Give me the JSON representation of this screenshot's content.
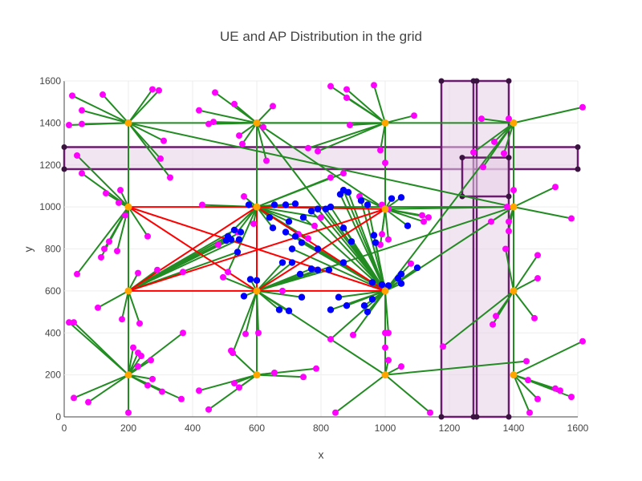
{
  "chart_data": {
    "type": "scatter",
    "title": "UE and AP Distribution in the grid",
    "xlabel": "x",
    "ylabel": "y",
    "xlim": [
      0,
      1600
    ],
    "ylim": [
      0,
      1600
    ],
    "x_ticks": [
      "0",
      "200",
      "400",
      "600",
      "800",
      "1000",
      "1200",
      "1400",
      "1600"
    ],
    "y_ticks": [
      "0",
      "200",
      "400",
      "600",
      "800",
      "1000",
      "1200",
      "1400",
      "1600"
    ],
    "grid": true,
    "legend": "none",
    "colors": {
      "ap": "#ffa500",
      "ue_far": "#ff00ff",
      "ue_near": "#0000ff",
      "link_green": "#228b22",
      "link_red": "#ff0000",
      "zone_fill": "#e8d0e8",
      "zone_stroke": "#6a1b6e"
    },
    "zones": [
      {
        "x0": 0,
        "x1": 1600,
        "y0": 1180,
        "y1": 1285
      },
      {
        "x0": 1175,
        "x1": 1275,
        "y0": 0,
        "y1": 1600
      },
      {
        "x0": 1285,
        "x1": 1385,
        "y0": 0,
        "y1": 1600
      },
      {
        "x0": 1240,
        "x1": 1385,
        "y0": 1050,
        "y1": 1235
      }
    ],
    "access_points": [
      {
        "x": 200,
        "y": 1400
      },
      {
        "x": 600,
        "y": 1400
      },
      {
        "x": 1000,
        "y": 1400
      },
      {
        "x": 1400,
        "y": 1400
      },
      {
        "x": 200,
        "y": 1000
      },
      {
        "x": 600,
        "y": 1000
      },
      {
        "x": 1000,
        "y": 990
      },
      {
        "x": 1400,
        "y": 1000
      },
      {
        "x": 200,
        "y": 600
      },
      {
        "x": 600,
        "y": 600
      },
      {
        "x": 1000,
        "y": 600
      },
      {
        "x": 1400,
        "y": 600
      },
      {
        "x": 200,
        "y": 200
      },
      {
        "x": 600,
        "y": 200
      },
      {
        "x": 1000,
        "y": 200
      },
      {
        "x": 1400,
        "y": 200
      }
    ],
    "ue_far": [
      {
        "x": 25,
        "y": 1530,
        "ap": 0
      },
      {
        "x": 55,
        "y": 1460,
        "ap": 0
      },
      {
        "x": 120,
        "y": 1535,
        "ap": 0
      },
      {
        "x": 15,
        "y": 1390,
        "ap": 0
      },
      {
        "x": 55,
        "y": 1395,
        "ap": 0
      },
      {
        "x": 275,
        "y": 1560,
        "ap": 0
      },
      {
        "x": 295,
        "y": 1555,
        "ap": 0
      },
      {
        "x": 310,
        "y": 1315,
        "ap": 0
      },
      {
        "x": 300,
        "y": 1230,
        "ap": 0
      },
      {
        "x": 330,
        "y": 1140,
        "ap": 0
      },
      {
        "x": 470,
        "y": 1545,
        "ap": 1
      },
      {
        "x": 420,
        "y": 1460,
        "ap": 1
      },
      {
        "x": 530,
        "y": 1490,
        "ap": 1
      },
      {
        "x": 450,
        "y": 1395,
        "ap": 1
      },
      {
        "x": 465,
        "y": 1405,
        "ap": 1
      },
      {
        "x": 545,
        "y": 1340,
        "ap": 1
      },
      {
        "x": 555,
        "y": 1300,
        "ap": 1
      },
      {
        "x": 620,
        "y": 1380,
        "ap": 1
      },
      {
        "x": 650,
        "y": 1480,
        "ap": 1
      },
      {
        "x": 630,
        "y": 1220,
        "ap": 1
      },
      {
        "x": 830,
        "y": 1575,
        "ap": 2
      },
      {
        "x": 880,
        "y": 1560,
        "ap": 2
      },
      {
        "x": 880,
        "y": 1520,
        "ap": 2
      },
      {
        "x": 965,
        "y": 1580,
        "ap": 2
      },
      {
        "x": 1090,
        "y": 1435,
        "ap": 2
      },
      {
        "x": 890,
        "y": 1390,
        "ap": 2
      },
      {
        "x": 760,
        "y": 1280,
        "ap": 2
      },
      {
        "x": 790,
        "y": 1265,
        "ap": 2
      },
      {
        "x": 985,
        "y": 1270,
        "ap": 2
      },
      {
        "x": 1000,
        "y": 1210,
        "ap": 2
      },
      {
        "x": 1615,
        "y": 1475,
        "ap": 3
      },
      {
        "x": 1385,
        "y": 1420,
        "ap": 3
      },
      {
        "x": 1300,
        "y": 1420,
        "ap": 3
      },
      {
        "x": 1340,
        "y": 1310,
        "ap": 3
      },
      {
        "x": 1370,
        "y": 1255,
        "ap": 3
      },
      {
        "x": 1275,
        "y": 1260,
        "ap": 3
      },
      {
        "x": 1305,
        "y": 1190,
        "ap": 3
      },
      {
        "x": 40,
        "y": 1245,
        "ap": 4
      },
      {
        "x": 55,
        "y": 1160,
        "ap": 4
      },
      {
        "x": 130,
        "y": 1065,
        "ap": 4
      },
      {
        "x": 175,
        "y": 1080,
        "ap": 4
      },
      {
        "x": 170,
        "y": 1020,
        "ap": 4
      },
      {
        "x": 190,
        "y": 960,
        "ap": 4
      },
      {
        "x": 260,
        "y": 860,
        "ap": 4
      },
      {
        "x": 140,
        "y": 835,
        "ap": 4
      },
      {
        "x": 115,
        "y": 760,
        "ap": 4
      },
      {
        "x": 125,
        "y": 800,
        "ap": 4
      },
      {
        "x": 165,
        "y": 790,
        "ap": 4
      },
      {
        "x": 40,
        "y": 680,
        "ap": 4
      },
      {
        "x": 430,
        "y": 1010,
        "ap": 5
      },
      {
        "x": 560,
        "y": 1050,
        "ap": 5
      },
      {
        "x": 590,
        "y": 920,
        "ap": 5
      },
      {
        "x": 540,
        "y": 880,
        "ap": 5
      },
      {
        "x": 480,
        "y": 820,
        "ap": 5
      },
      {
        "x": 510,
        "y": 690,
        "ap": 5
      },
      {
        "x": 730,
        "y": 870,
        "ap": 5
      },
      {
        "x": 760,
        "y": 850,
        "ap": 5
      },
      {
        "x": 780,
        "y": 910,
        "ap": 5
      },
      {
        "x": 800,
        "y": 950,
        "ap": 5
      },
      {
        "x": 830,
        "y": 1140,
        "ap": 5
      },
      {
        "x": 870,
        "y": 1160,
        "ap": 5
      },
      {
        "x": 920,
        "y": 1050,
        "ap": 6
      },
      {
        "x": 990,
        "y": 1010,
        "ap": 6
      },
      {
        "x": 1010,
        "y": 990,
        "ap": 6
      },
      {
        "x": 1115,
        "y": 960,
        "ap": 6
      },
      {
        "x": 1135,
        "y": 950,
        "ap": 6
      },
      {
        "x": 1120,
        "y": 930,
        "ap": 6
      },
      {
        "x": 1010,
        "y": 845,
        "ap": 6
      },
      {
        "x": 985,
        "y": 820,
        "ap": 6
      },
      {
        "x": 990,
        "y": 870,
        "ap": 6
      },
      {
        "x": 1400,
        "y": 1080,
        "ap": 7
      },
      {
        "x": 1380,
        "y": 1000,
        "ap": 7
      },
      {
        "x": 1330,
        "y": 930,
        "ap": 7
      },
      {
        "x": 1530,
        "y": 1095,
        "ap": 7
      },
      {
        "x": 1580,
        "y": 945,
        "ap": 7
      },
      {
        "x": 1385,
        "y": 930,
        "ap": 7
      },
      {
        "x": 1385,
        "y": 885,
        "ap": 7
      },
      {
        "x": 230,
        "y": 685,
        "ap": 8
      },
      {
        "x": 370,
        "y": 690,
        "ap": 8
      },
      {
        "x": 290,
        "y": 700,
        "ap": 8
      },
      {
        "x": 105,
        "y": 520,
        "ap": 8
      },
      {
        "x": 180,
        "y": 465,
        "ap": 8
      },
      {
        "x": 235,
        "y": 445,
        "ap": 8
      },
      {
        "x": 495,
        "y": 665,
        "ap": 9
      },
      {
        "x": 680,
        "y": 600,
        "ap": 9
      },
      {
        "x": 565,
        "y": 395,
        "ap": 9
      },
      {
        "x": 605,
        "y": 400,
        "ap": 9
      },
      {
        "x": 525,
        "y": 305,
        "ap": 9
      },
      {
        "x": 900,
        "y": 390,
        "ap": 10
      },
      {
        "x": 1010,
        "y": 400,
        "ap": 10
      },
      {
        "x": 830,
        "y": 370,
        "ap": 10
      },
      {
        "x": 1000,
        "y": 330,
        "ap": 10
      },
      {
        "x": 1080,
        "y": 730,
        "ap": 10
      },
      {
        "x": 1475,
        "y": 770,
        "ap": 11
      },
      {
        "x": 1475,
        "y": 660,
        "ap": 11
      },
      {
        "x": 1375,
        "y": 800,
        "ap": 11
      },
      {
        "x": 1345,
        "y": 480,
        "ap": 11
      },
      {
        "x": 1335,
        "y": 440,
        "ap": 11
      },
      {
        "x": 1465,
        "y": 470,
        "ap": 11
      },
      {
        "x": 1180,
        "y": 335,
        "ap": 11
      },
      {
        "x": 15,
        "y": 450,
        "ap": 12
      },
      {
        "x": 30,
        "y": 450,
        "ap": 12
      },
      {
        "x": 215,
        "y": 330,
        "ap": 12
      },
      {
        "x": 240,
        "y": 290,
        "ap": 12
      },
      {
        "x": 230,
        "y": 305,
        "ap": 12
      },
      {
        "x": 270,
        "y": 270,
        "ap": 12
      },
      {
        "x": 230,
        "y": 240,
        "ap": 12
      },
      {
        "x": 275,
        "y": 180,
        "ap": 12
      },
      {
        "x": 260,
        "y": 150,
        "ap": 12
      },
      {
        "x": 305,
        "y": 120,
        "ap": 12
      },
      {
        "x": 370,
        "y": 400,
        "ap": 12
      },
      {
        "x": 30,
        "y": 90,
        "ap": 12
      },
      {
        "x": 75,
        "y": 70,
        "ap": 12
      },
      {
        "x": 200,
        "y": 20,
        "ap": 12
      },
      {
        "x": 365,
        "y": 85,
        "ap": 12
      },
      {
        "x": 520,
        "y": 315,
        "ap": 13
      },
      {
        "x": 655,
        "y": 210,
        "ap": 13
      },
      {
        "x": 745,
        "y": 190,
        "ap": 13
      },
      {
        "x": 785,
        "y": 230,
        "ap": 13
      },
      {
        "x": 530,
        "y": 160,
        "ap": 13
      },
      {
        "x": 545,
        "y": 140,
        "ap": 13
      },
      {
        "x": 420,
        "y": 125,
        "ap": 13
      },
      {
        "x": 450,
        "y": 35,
        "ap": 13
      },
      {
        "x": 1000,
        "y": 400,
        "ap": 14
      },
      {
        "x": 1010,
        "y": 270,
        "ap": 14
      },
      {
        "x": 1050,
        "y": 240,
        "ap": 14
      },
      {
        "x": 845,
        "y": 20,
        "ap": 14
      },
      {
        "x": 1140,
        "y": 20,
        "ap": 14
      },
      {
        "x": 1440,
        "y": 265,
        "ap": 14
      },
      {
        "x": 1445,
        "y": 175,
        "ap": 15
      },
      {
        "x": 1530,
        "y": 135,
        "ap": 15
      },
      {
        "x": 1545,
        "y": 125,
        "ap": 15
      },
      {
        "x": 1580,
        "y": 95,
        "ap": 15
      },
      {
        "x": 1475,
        "y": 85,
        "ap": 15
      },
      {
        "x": 1450,
        "y": 20,
        "ap": 15
      },
      {
        "x": 1615,
        "y": 360,
        "ap": 15
      }
    ],
    "ue_near": [
      {
        "x": 510,
        "y": 860,
        "ap": 8
      },
      {
        "x": 520,
        "y": 845,
        "ap": 8
      },
      {
        "x": 505,
        "y": 840,
        "ap": 8
      },
      {
        "x": 530,
        "y": 890,
        "ap": 8
      },
      {
        "x": 550,
        "y": 880,
        "ap": 8
      },
      {
        "x": 545,
        "y": 845,
        "ap": 8
      },
      {
        "x": 540,
        "y": 785,
        "ap": 8
      },
      {
        "x": 575,
        "y": 1010,
        "ap": 5
      },
      {
        "x": 655,
        "y": 1010,
        "ap": 5
      },
      {
        "x": 690,
        "y": 1010,
        "ap": 5
      },
      {
        "x": 720,
        "y": 1015,
        "ap": 5
      },
      {
        "x": 640,
        "y": 950,
        "ap": 5
      },
      {
        "x": 650,
        "y": 900,
        "ap": 5
      },
      {
        "x": 700,
        "y": 930,
        "ap": 5
      },
      {
        "x": 745,
        "y": 950,
        "ap": 10
      },
      {
        "x": 770,
        "y": 980,
        "ap": 10
      },
      {
        "x": 790,
        "y": 990,
        "ap": 10
      },
      {
        "x": 815,
        "y": 990,
        "ap": 10
      },
      {
        "x": 830,
        "y": 1000,
        "ap": 10
      },
      {
        "x": 860,
        "y": 1060,
        "ap": 10
      },
      {
        "x": 870,
        "y": 1080,
        "ap": 10
      },
      {
        "x": 885,
        "y": 1070,
        "ap": 10
      },
      {
        "x": 925,
        "y": 1030,
        "ap": 10
      },
      {
        "x": 945,
        "y": 1010,
        "ap": 10
      },
      {
        "x": 690,
        "y": 880,
        "ap": 10
      },
      {
        "x": 720,
        "y": 860,
        "ap": 10
      },
      {
        "x": 740,
        "y": 830,
        "ap": 10
      },
      {
        "x": 710,
        "y": 800,
        "ap": 10
      },
      {
        "x": 790,
        "y": 800,
        "ap": 10
      },
      {
        "x": 870,
        "y": 900,
        "ap": 10
      },
      {
        "x": 895,
        "y": 835,
        "ap": 10
      },
      {
        "x": 965,
        "y": 865,
        "ap": 10
      },
      {
        "x": 970,
        "y": 830,
        "ap": 10
      },
      {
        "x": 680,
        "y": 735,
        "ap": 9
      },
      {
        "x": 710,
        "y": 735,
        "ap": 9
      },
      {
        "x": 735,
        "y": 680,
        "ap": 9
      },
      {
        "x": 770,
        "y": 705,
        "ap": 9
      },
      {
        "x": 790,
        "y": 700,
        "ap": 9
      },
      {
        "x": 825,
        "y": 700,
        "ap": 9
      },
      {
        "x": 870,
        "y": 735,
        "ap": 9
      },
      {
        "x": 580,
        "y": 655,
        "ap": 9
      },
      {
        "x": 600,
        "y": 650,
        "ap": 9
      },
      {
        "x": 560,
        "y": 575,
        "ap": 9
      },
      {
        "x": 960,
        "y": 640,
        "ap": 10
      },
      {
        "x": 990,
        "y": 630,
        "ap": 10
      },
      {
        "x": 1010,
        "y": 625,
        "ap": 10
      },
      {
        "x": 1040,
        "y": 660,
        "ap": 10
      },
      {
        "x": 1050,
        "y": 680,
        "ap": 10
      },
      {
        "x": 1050,
        "y": 635,
        "ap": 10
      },
      {
        "x": 1100,
        "y": 710,
        "ap": 10
      },
      {
        "x": 1020,
        "y": 1040,
        "ap": 6
      },
      {
        "x": 1050,
        "y": 1045,
        "ap": 6
      },
      {
        "x": 1070,
        "y": 910,
        "ap": 6
      },
      {
        "x": 670,
        "y": 510,
        "ap": 9
      },
      {
        "x": 700,
        "y": 505,
        "ap": 9
      },
      {
        "x": 740,
        "y": 570,
        "ap": 9
      },
      {
        "x": 830,
        "y": 510,
        "ap": 10
      },
      {
        "x": 855,
        "y": 570,
        "ap": 10
      },
      {
        "x": 880,
        "y": 530,
        "ap": 10
      },
      {
        "x": 935,
        "y": 530,
        "ap": 10
      },
      {
        "x": 945,
        "y": 500,
        "ap": 10
      },
      {
        "x": 960,
        "y": 560,
        "ap": 10
      }
    ],
    "ap_links_red": [
      {
        "from": 5,
        "to": 6
      },
      {
        "from": 5,
        "to": 10
      },
      {
        "from": 4,
        "to": 10
      },
      {
        "from": 8,
        "to": 5
      },
      {
        "from": 8,
        "to": 6
      },
      {
        "from": 4,
        "to": 5
      },
      {
        "from": 9,
        "to": 6
      },
      {
        "from": 4,
        "to": 9
      },
      {
        "from": 8,
        "to": 10
      },
      {
        "from": 5,
        "to": 9
      }
    ],
    "ap_links_green": [
      {
        "from": 0,
        "to": 2
      },
      {
        "from": 0,
        "to": 7
      },
      {
        "from": 1,
        "to": 2
      },
      {
        "from": 1,
        "to": 6
      },
      {
        "from": 1,
        "to": 10
      },
      {
        "from": 2,
        "to": 3
      },
      {
        "from": 2,
        "to": 6
      },
      {
        "from": 5,
        "to": 7
      },
      {
        "from": 6,
        "to": 7
      },
      {
        "from": 9,
        "to": 7
      },
      {
        "from": 10,
        "to": 7
      },
      {
        "from": 9,
        "to": 14
      },
      {
        "from": 13,
        "to": 9
      },
      {
        "from": 12,
        "to": 8
      },
      {
        "from": 4,
        "to": 8
      },
      {
        "from": 4,
        "to": 0
      },
      {
        "from": 5,
        "to": 1
      },
      {
        "from": 9,
        "to": 1
      },
      {
        "from": 3,
        "to": 11
      },
      {
        "from": 11,
        "to": 15
      },
      {
        "from": 10,
        "to": 3
      },
      {
        "from": 7,
        "to": 15
      }
    ]
  }
}
